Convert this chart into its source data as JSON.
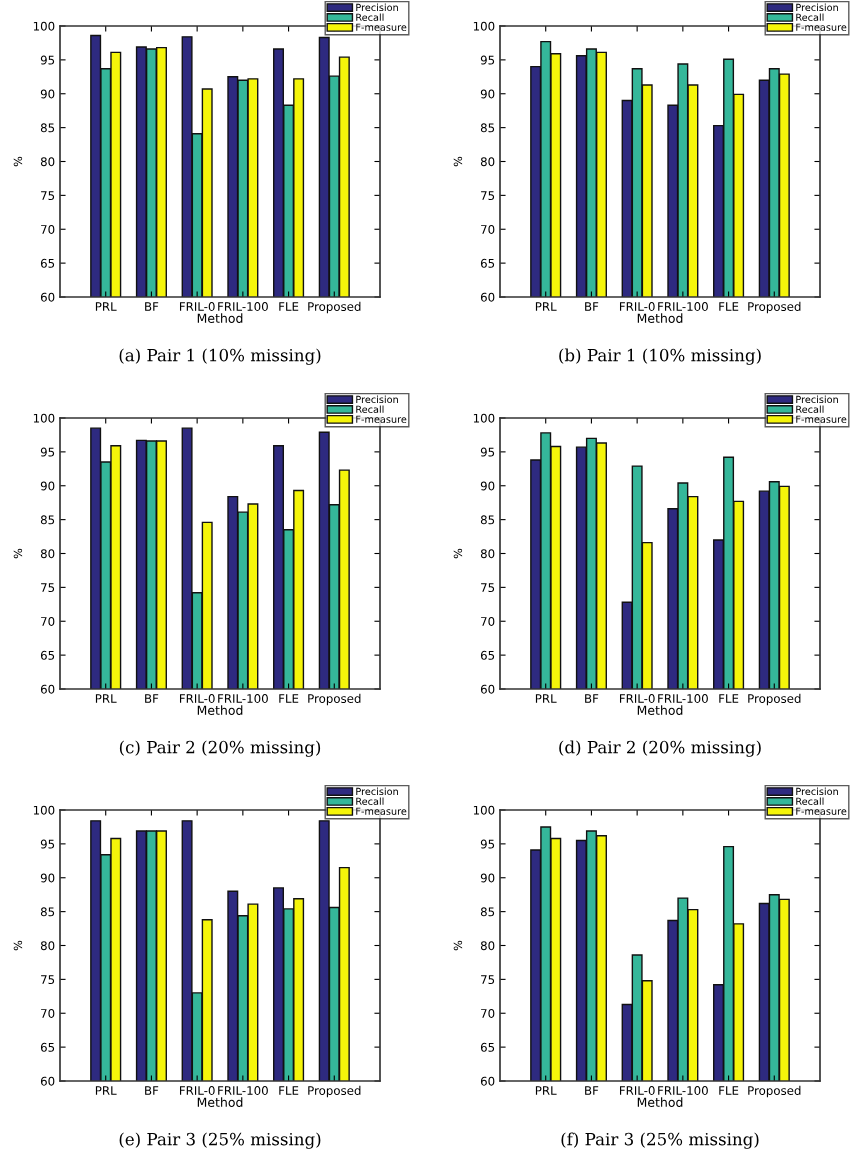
{
  "chart_data": [
    {
      "type": "bar",
      "title": "(a) Pair 1 (10% missing)",
      "xlabel": "Method",
      "ylabel": "%",
      "categories": [
        "PRL",
        "BF",
        "FRIL-0",
        "FRIL-100",
        "FLE",
        "Proposed"
      ],
      "ylim": [
        60,
        100
      ],
      "yticks": [
        60,
        65,
        70,
        75,
        80,
        85,
        90,
        95,
        100
      ],
      "legend": "top right",
      "grid": false,
      "series": [
        {
          "name": "Precision",
          "color": "#2e2a80",
          "values": [
            98.6,
            96.9,
            98.4,
            92.5,
            96.6,
            98.3
          ]
        },
        {
          "name": "Recall",
          "color": "#35b79a",
          "values": [
            93.7,
            96.6,
            84.1,
            92.0,
            88.3,
            92.6
          ]
        },
        {
          "name": "F-measure",
          "color": "#f5f50a",
          "values": [
            96.1,
            96.8,
            90.7,
            92.2,
            92.2,
            95.4
          ]
        }
      ]
    },
    {
      "type": "bar",
      "title": "(b) Pair 1 (10% missing)",
      "xlabel": "Method",
      "ylabel": "%",
      "categories": [
        "PRL",
        "BF",
        "FRIL-0",
        "FRIL-100",
        "FLE",
        "Proposed"
      ],
      "ylim": [
        60,
        100
      ],
      "yticks": [
        60,
        65,
        70,
        75,
        80,
        85,
        90,
        95,
        100
      ],
      "legend": "top right",
      "grid": false,
      "series": [
        {
          "name": "Precision",
          "color": "#2e2a80",
          "values": [
            94.0,
            95.6,
            89.0,
            88.3,
            85.3,
            92.0
          ]
        },
        {
          "name": "Recall",
          "color": "#35b79a",
          "values": [
            97.7,
            96.6,
            93.7,
            94.4,
            95.1,
            93.7
          ]
        },
        {
          "name": "F-measure",
          "color": "#f5f50a",
          "values": [
            95.9,
            96.1,
            91.3,
            91.3,
            89.9,
            92.9
          ]
        }
      ]
    },
    {
      "type": "bar",
      "title": "(c) Pair 2 (20% missing)",
      "xlabel": "Method",
      "ylabel": "%",
      "categories": [
        "PRL",
        "BF",
        "FRIL-0",
        "FRIL-100",
        "FLE",
        "Proposed"
      ],
      "ylim": [
        60,
        100
      ],
      "yticks": [
        60,
        65,
        70,
        75,
        80,
        85,
        90,
        95,
        100
      ],
      "legend": "top right",
      "grid": false,
      "series": [
        {
          "name": "Precision",
          "color": "#2e2a80",
          "values": [
            98.5,
            96.7,
            98.5,
            88.4,
            95.9,
            97.9
          ]
        },
        {
          "name": "Recall",
          "color": "#35b79a",
          "values": [
            93.5,
            96.6,
            74.2,
            86.1,
            83.5,
            87.2
          ]
        },
        {
          "name": "F-measure",
          "color": "#f5f50a",
          "values": [
            95.9,
            96.6,
            84.6,
            87.3,
            89.3,
            92.3
          ]
        }
      ]
    },
    {
      "type": "bar",
      "title": "(d) Pair 2 (20% missing)",
      "xlabel": "Method",
      "ylabel": "%",
      "categories": [
        "PRL",
        "BF",
        "FRIL-0",
        "FRIL-100",
        "FLE",
        "Proposed"
      ],
      "ylim": [
        60,
        100
      ],
      "yticks": [
        60,
        65,
        70,
        75,
        80,
        85,
        90,
        95,
        100
      ],
      "legend": "top right",
      "grid": false,
      "series": [
        {
          "name": "Precision",
          "color": "#2e2a80",
          "values": [
            93.8,
            95.7,
            72.8,
            86.6,
            82.0,
            89.2
          ]
        },
        {
          "name": "Recall",
          "color": "#35b79a",
          "values": [
            97.8,
            97.0,
            92.9,
            90.4,
            94.2,
            90.6
          ]
        },
        {
          "name": "F-measure",
          "color": "#f5f50a",
          "values": [
            95.8,
            96.3,
            81.6,
            88.4,
            87.7,
            89.9
          ]
        }
      ]
    },
    {
      "type": "bar",
      "title": "(e) Pair 3 (25% missing)",
      "xlabel": "Method",
      "ylabel": "%",
      "categories": [
        "PRL",
        "BF",
        "FRIL-0",
        "FRIL-100",
        "FLE",
        "Proposed"
      ],
      "ylim": [
        60,
        100
      ],
      "yticks": [
        60,
        65,
        70,
        75,
        80,
        85,
        90,
        95,
        100
      ],
      "legend": "top right",
      "grid": false,
      "series": [
        {
          "name": "Precision",
          "color": "#2e2a80",
          "values": [
            98.4,
            96.9,
            98.4,
            88.0,
            88.5,
            98.4
          ]
        },
        {
          "name": "Recall",
          "color": "#35b79a",
          "values": [
            93.4,
            96.9,
            73.0,
            84.4,
            85.4,
            85.6
          ]
        },
        {
          "name": "F-measure",
          "color": "#f5f50a",
          "values": [
            95.8,
            96.9,
            83.8,
            86.1,
            86.9,
            91.5
          ]
        }
      ]
    },
    {
      "type": "bar",
      "title": "(f) Pair 3 (25% missing)",
      "xlabel": "Method",
      "ylabel": "%",
      "categories": [
        "PRL",
        "BF",
        "FRIL-0",
        "FRIL-100",
        "FLE",
        "Proposed"
      ],
      "ylim": [
        60,
        100
      ],
      "yticks": [
        60,
        65,
        70,
        75,
        80,
        85,
        90,
        95,
        100
      ],
      "legend": "top right",
      "grid": false,
      "series": [
        {
          "name": "Precision",
          "color": "#2e2a80",
          "values": [
            94.1,
            95.5,
            71.3,
            83.7,
            74.2,
            86.2
          ]
        },
        {
          "name": "Recall",
          "color": "#35b79a",
          "values": [
            97.5,
            96.9,
            78.6,
            87.0,
            94.6,
            87.5
          ]
        },
        {
          "name": "F-measure",
          "color": "#f5f50a",
          "values": [
            95.8,
            96.2,
            74.8,
            85.3,
            83.2,
            86.8
          ]
        }
      ]
    }
  ]
}
